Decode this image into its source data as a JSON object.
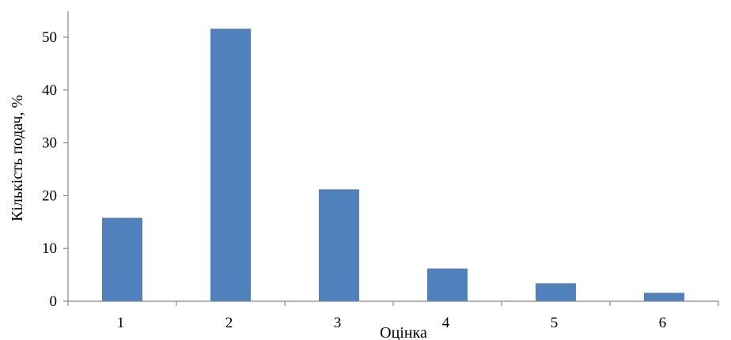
{
  "chart_data": {
    "type": "bar",
    "title": "",
    "xlabel": "Оцінка",
    "ylabel": "Кількість подач, %",
    "categories": [
      "1",
      "2",
      "3",
      "4",
      "5",
      "6"
    ],
    "values": [
      15.8,
      51.6,
      21.2,
      6.2,
      3.4,
      1.6
    ],
    "ylim": [
      0,
      50
    ],
    "yticks": [
      "0",
      "10",
      "20",
      "30",
      "40",
      "50"
    ],
    "grid": false,
    "legend": "none",
    "bar_color": "#4f81bd"
  }
}
